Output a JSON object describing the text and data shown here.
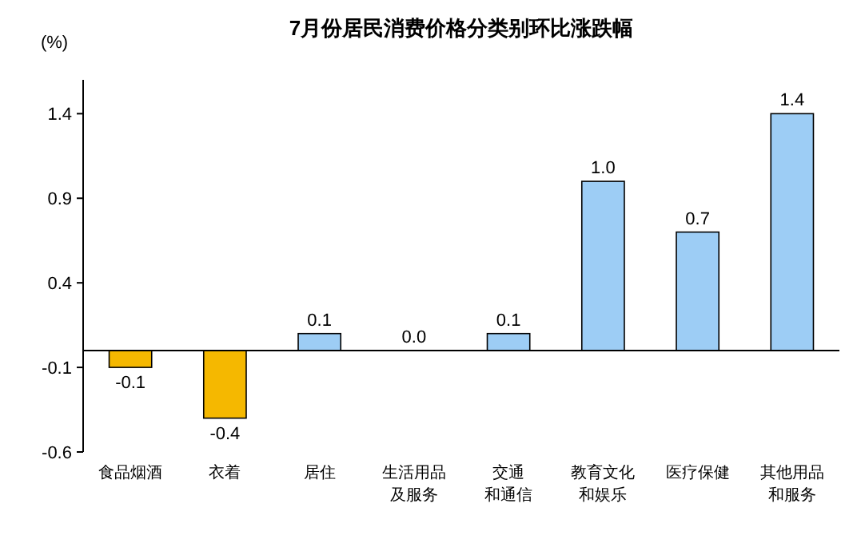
{
  "chart_data": {
    "type": "bar",
    "title": "7月份居民消费价格分类别环比涨跌幅",
    "ylabel": "(%)",
    "categories": [
      "食品烟酒",
      "衣着",
      "居住",
      "生活用品及服务",
      "交通和通信",
      "教育文化和娱乐",
      "医疗保健",
      "其他用品和服务"
    ],
    "values": [
      -0.1,
      -0.4,
      0.1,
      0.0,
      0.1,
      1.0,
      0.7,
      1.4
    ],
    "value_labels": [
      "-0.1",
      "-0.4",
      "0.1",
      "0.0",
      "0.1",
      "1.0",
      "0.7",
      "1.4"
    ],
    "colors": [
      "#f5b800",
      "#f5b800",
      "#9dcdf5",
      "#9dcdf5",
      "#9dcdf5",
      "#9dcdf5",
      "#9dcdf5",
      "#9dcdf5"
    ],
    "grid": false,
    "ylim": [
      -0.6,
      1.6
    ],
    "yticks": [
      -0.6,
      -0.1,
      0.4,
      0.9,
      1.4
    ]
  }
}
